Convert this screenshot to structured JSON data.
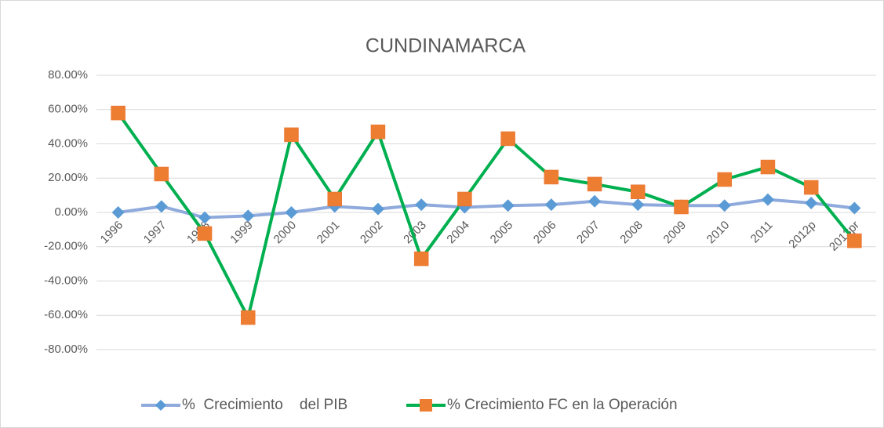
{
  "chart_data": {
    "type": "line",
    "title": "CUNDINAMARCA",
    "categories": [
      "1996",
      "1997",
      "1998",
      "1999",
      "2000",
      "2001",
      "2002",
      "2003",
      "2004",
      "2005",
      "2006",
      "2007",
      "2008",
      "2009",
      "2010",
      "2011",
      "2012p",
      "2013pr"
    ],
    "series": [
      {
        "name": "%  Crecimiento    del PIB",
        "color": "#8faadc",
        "marker_color": "#5b9bd5",
        "marker": "diamond",
        "values": [
          0,
          3.5,
          -3,
          -2,
          0,
          3.5,
          2,
          4.5,
          3,
          4,
          4.5,
          6.5,
          4.5,
          4,
          4,
          7.5,
          5.5,
          2.5
        ]
      },
      {
        "name": "% Crecimiento FC en la Operación",
        "color": "#00b050",
        "marker_color": "#ed7d31",
        "marker": "square",
        "values": [
          58,
          22.4,
          -12.3,
          -61.3,
          45.3,
          7.8,
          47,
          -27,
          7.8,
          43,
          20.6,
          16.5,
          12,
          3.2,
          19.2,
          26.5,
          14.6,
          -16.5
        ]
      }
    ],
    "ylim": [
      -80,
      80
    ],
    "yticks": [
      {
        "value": -80,
        "label": "-80.00%"
      },
      {
        "value": -60,
        "label": "-60.00%"
      },
      {
        "value": -40,
        "label": "-40.00%"
      },
      {
        "value": -20,
        "label": "-20.00%"
      },
      {
        "value": 0,
        "label": "0.00%"
      },
      {
        "value": 20,
        "label": "20.00%"
      },
      {
        "value": 40,
        "label": "40.00%"
      },
      {
        "value": 60,
        "label": "60.00%"
      },
      {
        "value": 80,
        "label": "80.00%"
      }
    ],
    "grid": true,
    "legend": "bottom"
  }
}
